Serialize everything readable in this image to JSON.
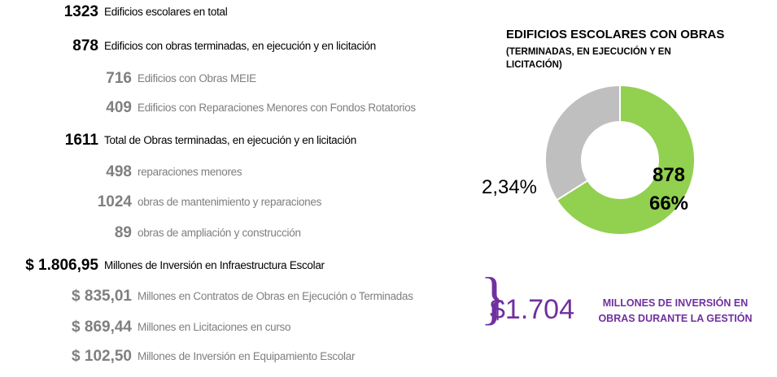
{
  "stats": [
    {
      "value": "1323",
      "label": "Edificios escolares en total",
      "level": 1
    },
    {
      "value": "878",
      "label": "Edificios con obras terminadas, en ejecución y en licitación",
      "level": 1
    },
    {
      "value": "716",
      "label": "Edificios con Obras MEIE",
      "level": 2
    },
    {
      "value": "409",
      "label": "Edificios con Reparaciones Menores con Fondos Rotatorios",
      "level": 2
    },
    {
      "value": "1611",
      "label": "Total de Obras terminadas, en ejecución y en licitación",
      "level": 1
    },
    {
      "value": "498",
      "label": "reparaciones menores",
      "level": 2
    },
    {
      "value": "1024",
      "label": "obras de mantenimiento y reparaciones",
      "level": 2
    },
    {
      "value": "89",
      "label": "obras de ampliación y construcción",
      "level": 2
    },
    {
      "value": "$ 1.806,95",
      "label": "Millones de Inversión en Infraestructura Escolar",
      "level": 1
    },
    {
      "value": "$ 835,01",
      "label": "Millones en Contratos de Obras en Ejecución o Terminadas",
      "level": 2
    },
    {
      "value": "$ 869,44",
      "label": "Millones en Licitaciones en curso",
      "level": 2
    },
    {
      "value": "$ 102,50",
      "label": "Millones de Inversión en Equipamiento Escolar",
      "level": 2
    }
  ],
  "chart_data": {
    "type": "donut",
    "title": "EDIFICIOS ESCOLARES CON OBRAS",
    "subtitle": "(TERMINADAS, EN EJECUCIÓN Y EN LICITACIÓN)",
    "values": [
      66,
      34
    ],
    "colors": [
      "#92d050",
      "#bfbfbf"
    ],
    "annotations": [
      "878",
      "66%",
      "2,34%"
    ]
  },
  "summary": {
    "amount": "$1.704",
    "text": "MILLONES DE INVERSIÓN EN OBRAS DURANTE LA GESTIÓN"
  }
}
